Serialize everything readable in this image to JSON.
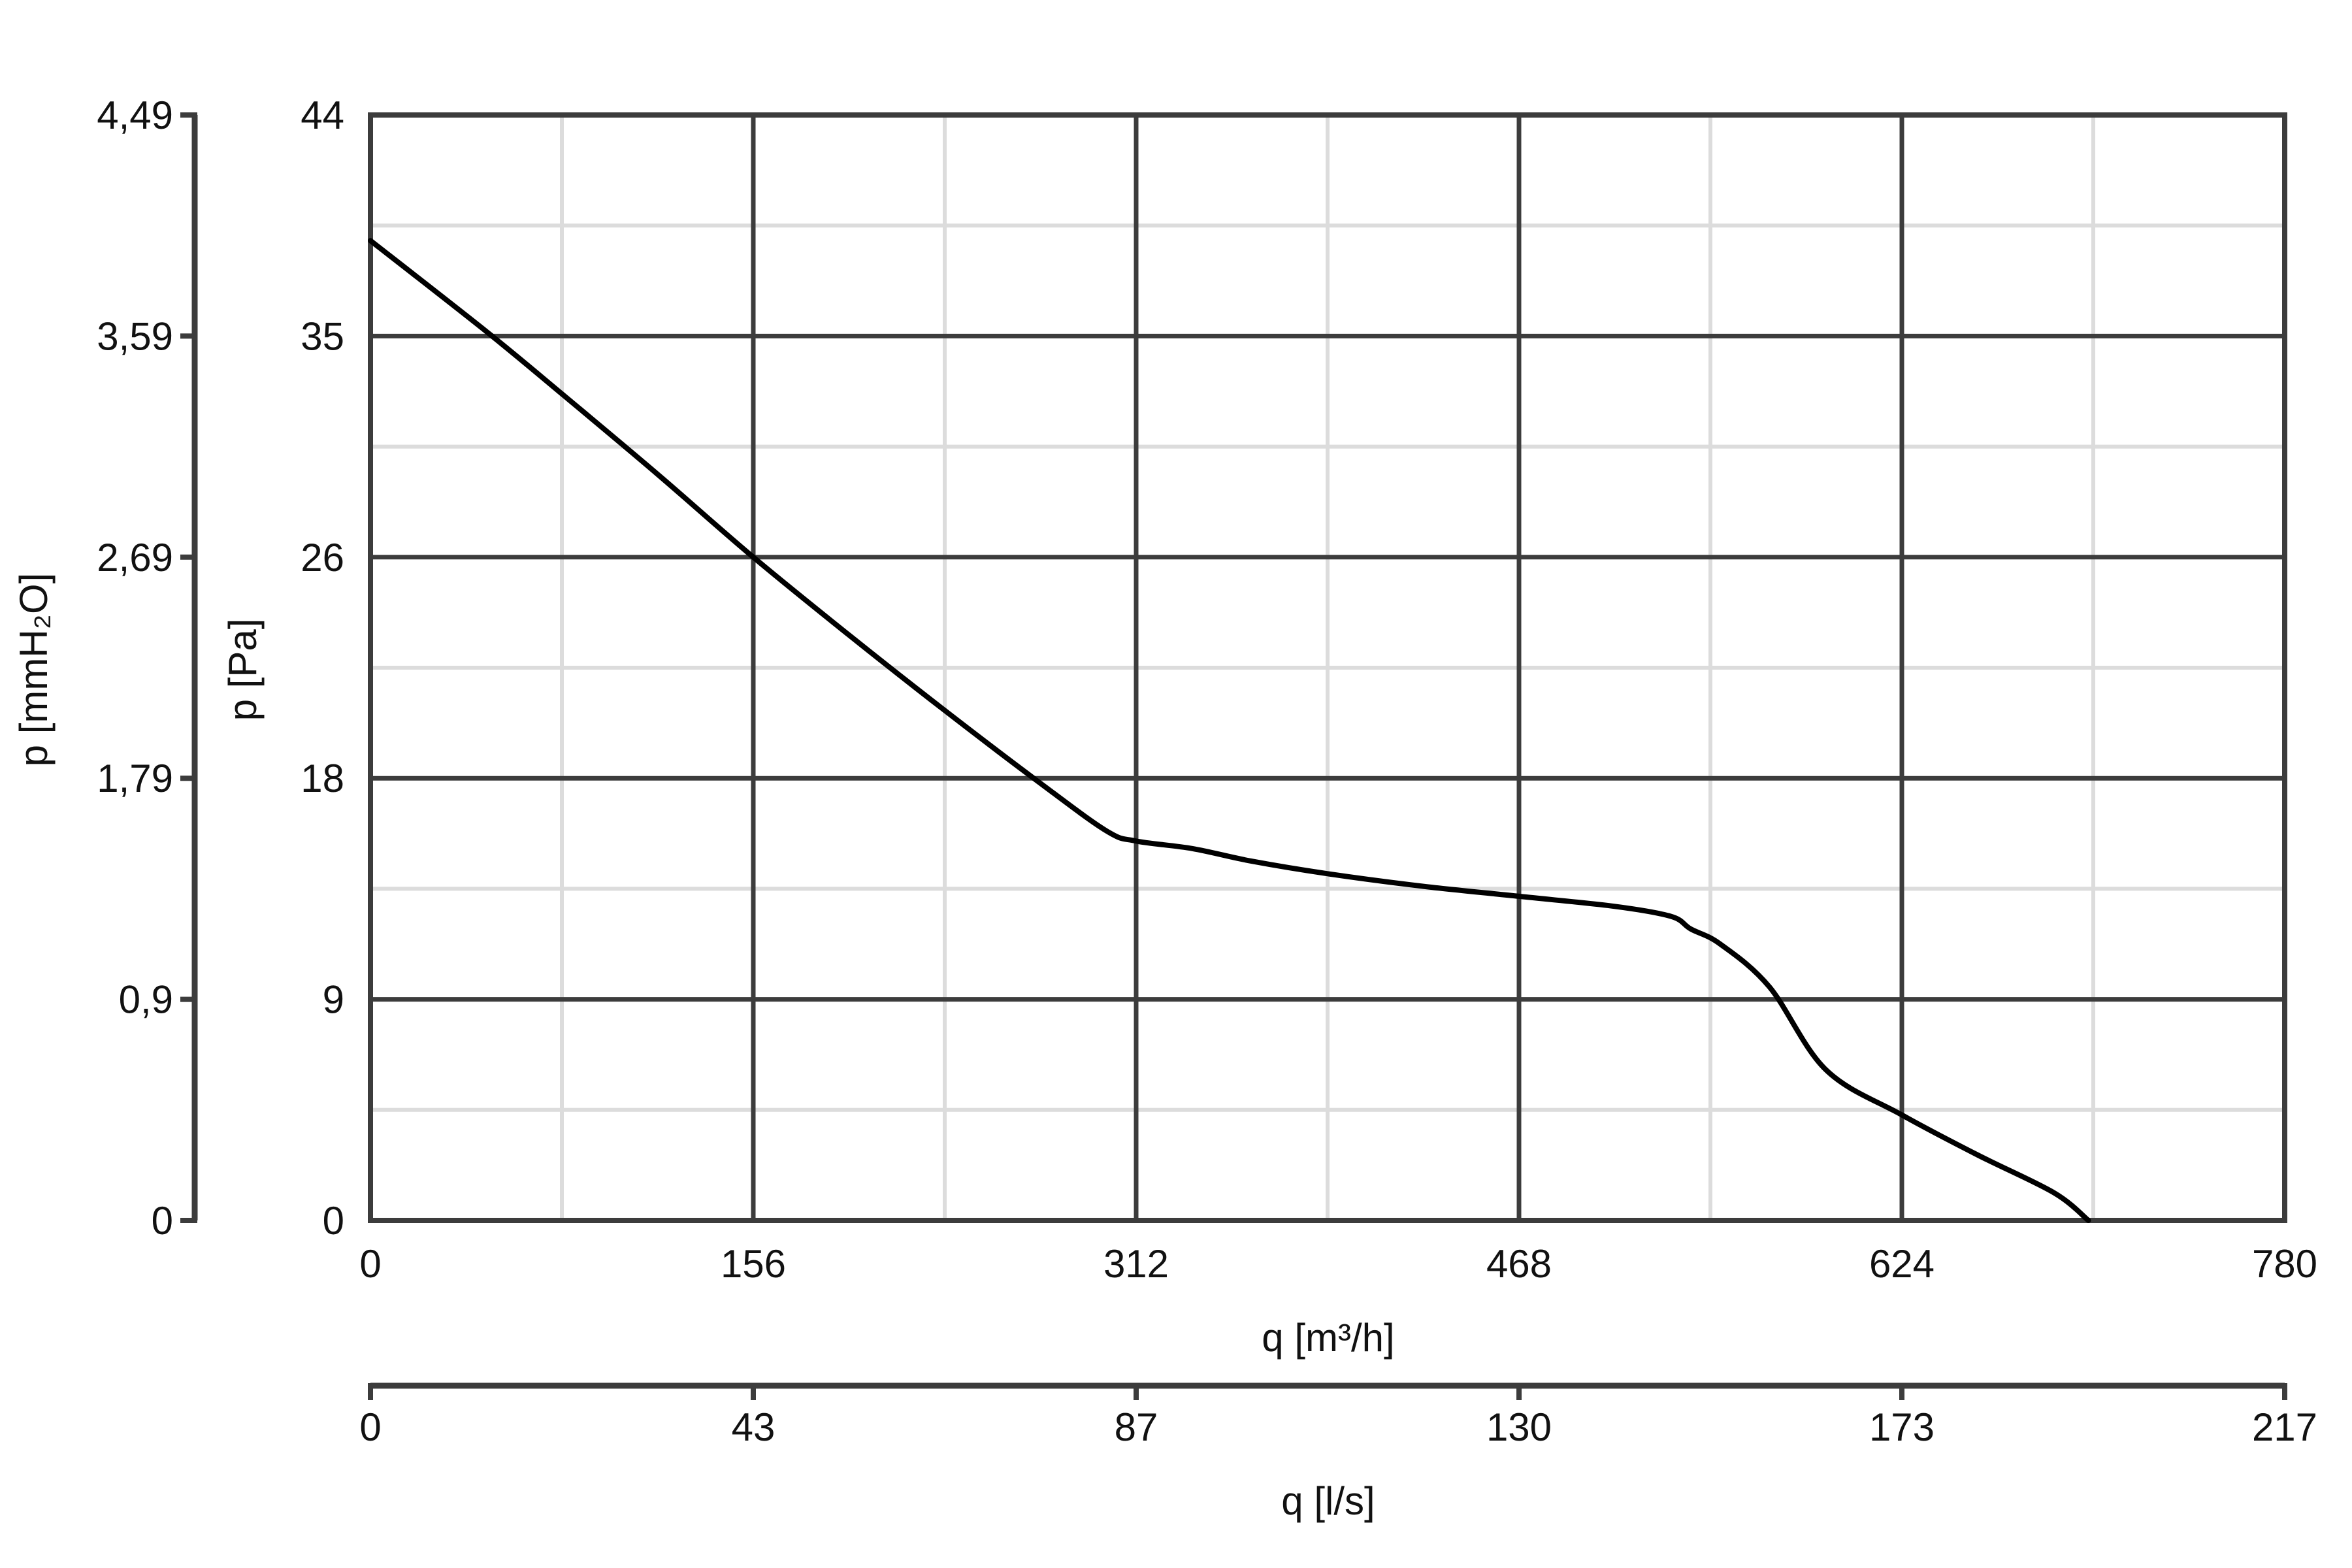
{
  "colors": {
    "background": "#ffffff",
    "major_grid": "#3c3c3c",
    "minor_grid": "#dcdcdc",
    "axis": "#3c3c3c",
    "curve": "#000000",
    "text": "#111111"
  },
  "chart_data": {
    "type": "line",
    "x_axis": {
      "label": "q [m³/h]",
      "range": [
        0,
        780
      ],
      "ticks": [
        "0",
        "156",
        "312",
        "468",
        "624",
        "780"
      ],
      "minor_step": 78
    },
    "x2_axis": {
      "label": "q [l/s]",
      "position": "bottom",
      "ticks": [
        "0",
        "43",
        "87",
        "130",
        "173",
        "217"
      ]
    },
    "y_axis": {
      "label": "p [Pa]",
      "range": [
        0,
        44
      ],
      "ticks": [
        "0",
        "9",
        "18",
        "26",
        "35",
        "44"
      ],
      "minor_step": 4.4
    },
    "y2_axis": {
      "label": "p [mmH₂O]",
      "position": "left",
      "ticks": [
        "0",
        "0,9",
        "1,79",
        "2,69",
        "3,59",
        "4,49"
      ]
    },
    "grid": true,
    "series": [
      {
        "x": [
          0,
          47,
          78,
          117,
          156,
          195,
          234,
          273,
          300,
          312,
          335,
          359,
          390,
          429,
          468,
          507,
          530,
          538,
          550,
          570,
          593,
          624,
          655,
          686,
          700
        ],
        "y": [
          39,
          35.4,
          32.9,
          29.7,
          26.4,
          23.3,
          20.3,
          17.4,
          15.5,
          15.1,
          14.8,
          14.3,
          13.8,
          13.3,
          12.9,
          12.5,
          12.1,
          11.6,
          11.0,
          9.3,
          6.0,
          4.2,
          2.6,
          1.1,
          0
        ]
      }
    ]
  }
}
